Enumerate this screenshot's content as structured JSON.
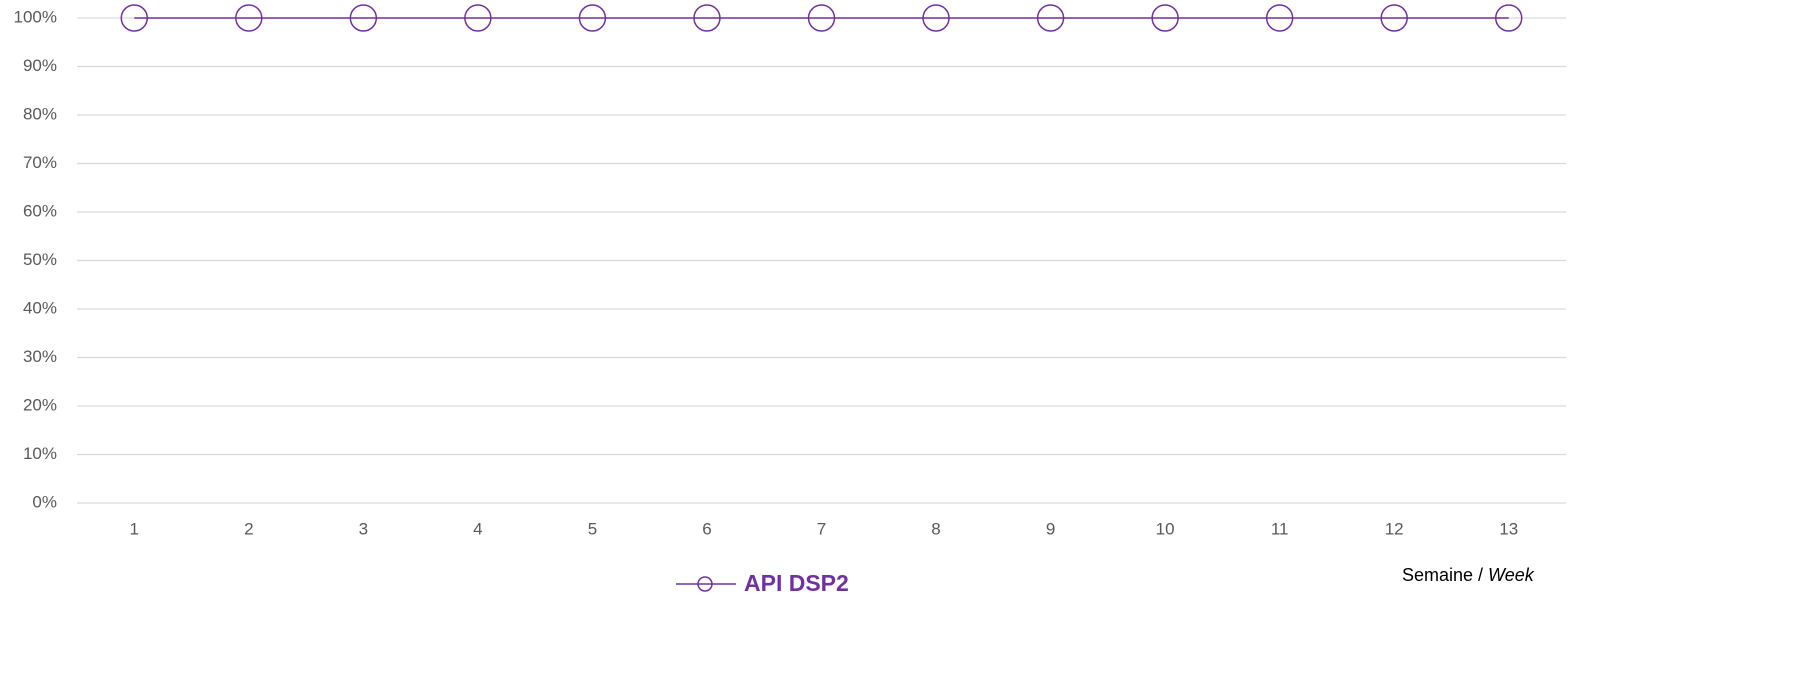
{
  "chart_data": {
    "type": "line",
    "categories": [
      "1",
      "2",
      "3",
      "4",
      "5",
      "6",
      "7",
      "8",
      "9",
      "10",
      "11",
      "12",
      "13"
    ],
    "series": [
      {
        "name": "API DSP2",
        "color": "#7030a0",
        "values": [
          100,
          100,
          100,
          100,
          100,
          100,
          100,
          100,
          100,
          100,
          100,
          100,
          100
        ]
      }
    ],
    "ylim": [
      0,
      100
    ],
    "yticks": [
      {
        "value": 0,
        "label": "0%"
      },
      {
        "value": 10,
        "label": "10%"
      },
      {
        "value": 20,
        "label": "20%"
      },
      {
        "value": 30,
        "label": "30%"
      },
      {
        "value": 40,
        "label": "40%"
      },
      {
        "value": 50,
        "label": "50%"
      },
      {
        "value": 60,
        "label": "60%"
      },
      {
        "value": 70,
        "label": "70%"
      },
      {
        "value": 80,
        "label": "80%"
      },
      {
        "value": 90,
        "label": "90%"
      },
      {
        "value": 100,
        "label": "100%"
      }
    ],
    "grid": true,
    "x_label": [
      "Semaine /",
      "Week"
    ],
    "legend": "bottom"
  }
}
